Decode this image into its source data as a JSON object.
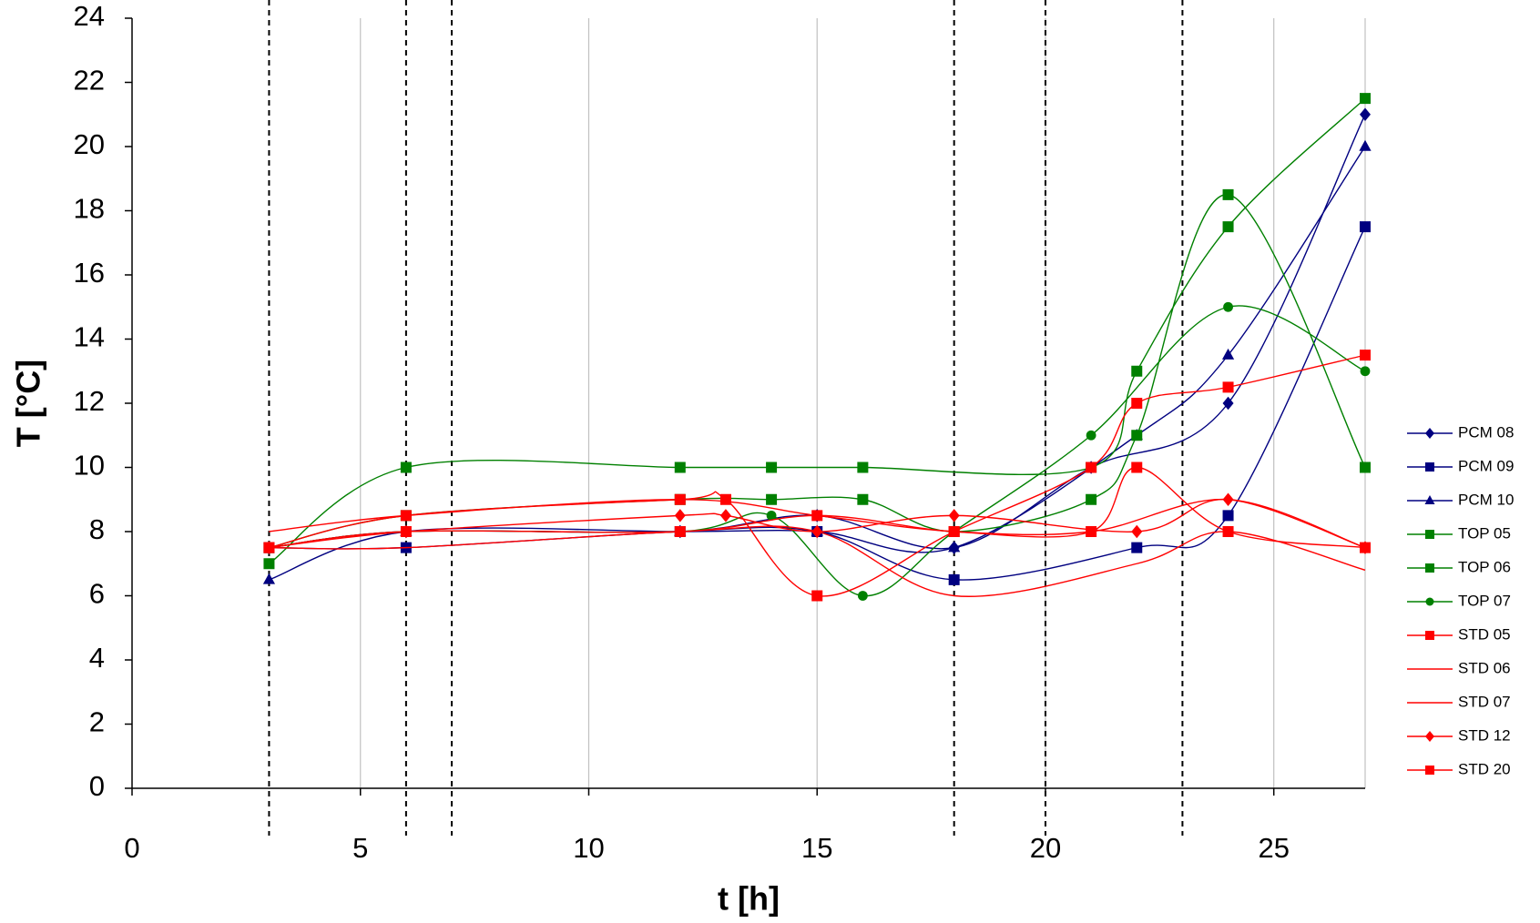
{
  "chart_data": {
    "type": "line",
    "x_label": "t [h]",
    "y_label": "T [°C]",
    "xlim": [
      0,
      27
    ],
    "ylim": [
      0,
      24
    ],
    "xticks": [
      0,
      5,
      10,
      15,
      20,
      25
    ],
    "yticks": [
      0,
      2,
      4,
      6,
      8,
      10,
      12,
      14,
      16,
      18,
      20,
      22,
      24
    ],
    "grid": "x",
    "legend": "right",
    "vlines": [
      3,
      6,
      7,
      18,
      20,
      23
    ],
    "series": [
      {
        "name": "PCM 08",
        "color": "#000080",
        "marker": "diamond",
        "x": [
          3,
          6,
          12,
          15,
          18,
          21,
          24,
          27
        ],
        "values": [
          7.5,
          8,
          8,
          8.5,
          7.5,
          10,
          12,
          21
        ]
      },
      {
        "name": "PCM 09",
        "color": "#000080",
        "marker": "square",
        "x": [
          3,
          6,
          12,
          15,
          18,
          22,
          24,
          27
        ],
        "values": [
          7.5,
          7.5,
          8,
          8,
          6.5,
          7.5,
          8.5,
          17.5
        ]
      },
      {
        "name": "PCM 10",
        "color": "#000080",
        "marker": "triangle",
        "x": [
          3,
          6,
          12,
          15,
          18,
          22,
          24,
          27
        ],
        "values": [
          6.5,
          8,
          8,
          8,
          7.5,
          11,
          13.5,
          20
        ]
      },
      {
        "name": "TOP 05",
        "color": "#008000",
        "marker": "square",
        "x": [
          3,
          6,
          12,
          14,
          16,
          21,
          22,
          24,
          27
        ],
        "values": [
          7,
          10,
          10,
          10,
          10,
          10,
          13,
          17.5,
          21.5
        ]
      },
      {
        "name": "TOP 06",
        "color": "#008000",
        "marker": "square",
        "x": [
          3,
          6,
          12,
          14,
          16,
          18,
          21,
          22,
          24,
          27
        ],
        "values": [
          7.5,
          8.5,
          9,
          9,
          9,
          8,
          9,
          11,
          18.5,
          10
        ]
      },
      {
        "name": "TOP 07",
        "color": "#008000",
        "marker": "circle",
        "x": [
          3,
          6,
          12,
          14,
          16,
          18,
          21,
          24,
          27
        ],
        "values": [
          7.5,
          8,
          8,
          8.5,
          6,
          8,
          11,
          15,
          13
        ]
      },
      {
        "name": "STD 05",
        "color": "#ff0000",
        "marker": "square",
        "x": [
          3,
          6,
          12,
          13,
          15,
          18,
          21,
          22,
          24,
          27
        ],
        "values": [
          7.5,
          8.5,
          9,
          9,
          6,
          8,
          10,
          12,
          12.5,
          13.5
        ]
      },
      {
        "name": "STD 06",
        "color": "#ff0000",
        "marker": "none",
        "x": [
          3,
          6,
          12,
          15,
          18,
          21,
          24,
          27
        ],
        "values": [
          8,
          8.5,
          9,
          8.5,
          8,
          8,
          9,
          7.5
        ]
      },
      {
        "name": "STD 07",
        "color": "#ff0000",
        "marker": "none",
        "x": [
          3,
          6,
          12,
          15,
          18,
          22,
          24,
          27
        ],
        "values": [
          7.5,
          7.5,
          8,
          8,
          6,
          7,
          8,
          6.8
        ]
      },
      {
        "name": "STD 12",
        "color": "#ff0000",
        "marker": "diamond",
        "x": [
          3,
          6,
          12,
          13,
          15,
          18,
          22,
          24,
          27
        ],
        "values": [
          7.5,
          8,
          8.5,
          8.5,
          8,
          8.5,
          8,
          9,
          7.5
        ]
      },
      {
        "name": "STD 20",
        "color": "#ff0000",
        "marker": "square",
        "x": [
          3,
          6,
          12,
          15,
          18,
          21,
          22,
          24,
          27
        ],
        "values": [
          7.5,
          8,
          8,
          8.5,
          8,
          8,
          10,
          8,
          7.5
        ]
      }
    ]
  }
}
